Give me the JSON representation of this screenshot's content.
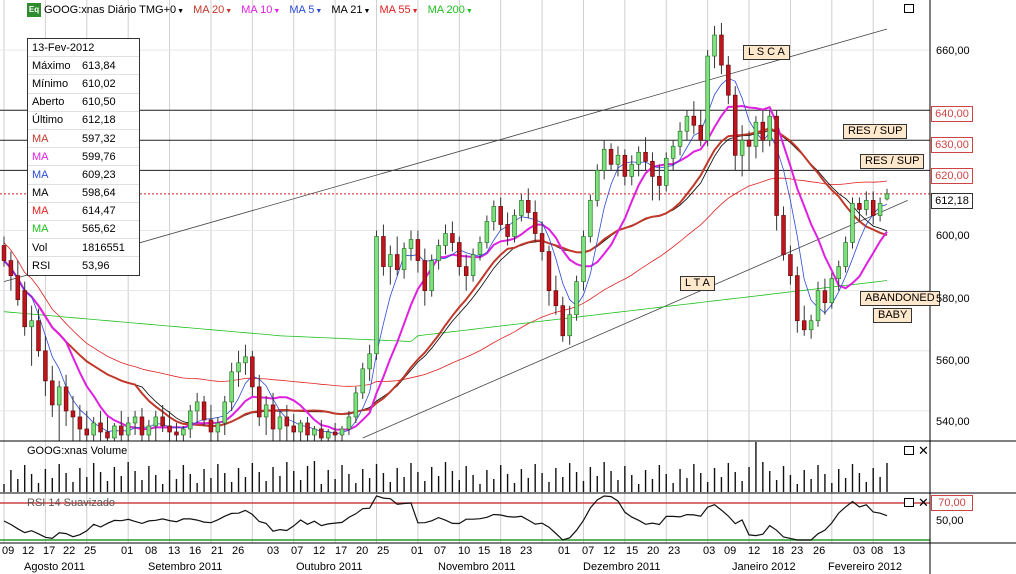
{
  "header": {
    "symbol": "GOOG:xnas Diário TMG+0",
    "eq_badge": "Eq",
    "indicators": [
      {
        "label": "MA 20",
        "color": "#c0392b"
      },
      {
        "label": "MA 10",
        "color": "#e020e0"
      },
      {
        "label": "MA 5",
        "color": "#2a4bd7"
      },
      {
        "label": "MA 21",
        "color": "#000000"
      },
      {
        "label": "MA 55",
        "color": "#e02020"
      },
      {
        "label": "MA 200",
        "color": "#20c020"
      }
    ]
  },
  "info_panel": {
    "date": "13-Fev-2012",
    "rows": [
      {
        "label": "Máximo",
        "value": "613,84",
        "color": "#000000"
      },
      {
        "label": "Mínimo",
        "value": "610,02",
        "color": "#000000"
      },
      {
        "label": "Aberto",
        "value": "610,50",
        "color": "#000000"
      },
      {
        "label": "Último",
        "value": "612,18",
        "color": "#000000"
      },
      {
        "label": "MA",
        "value": "597,32",
        "color": "#c0392b"
      },
      {
        "label": "MA",
        "value": "599,76",
        "color": "#e020e0"
      },
      {
        "label": "MA",
        "value": "609,23",
        "color": "#2a4bd7"
      },
      {
        "label": "MA",
        "value": "598,64",
        "color": "#000000"
      },
      {
        "label": "MA",
        "value": "614,47",
        "color": "#e02020"
      },
      {
        "label": "MA",
        "value": "565,62",
        "color": "#20c020"
      },
      {
        "label": "Vol",
        "value": "1816551",
        "color": "#000000"
      },
      {
        "label": "RSI",
        "value": "53,96",
        "color": "#000000"
      }
    ]
  },
  "annotations": {
    "lsca": "L S C A",
    "lta": "L T A",
    "res_sup_1": "RES / SUP",
    "res_sup_2": "RES / SUP",
    "abandoned": "ABANDONED",
    "baby": "BABY"
  },
  "price_axis": {
    "labels": [
      "660,00",
      "600,00",
      "580,00",
      "560,00",
      "540,00"
    ],
    "resistance_boxes": [
      "640,00",
      "630,00",
      "620,00"
    ],
    "current_price": "612,18"
  },
  "volume_panel": {
    "label": "GOOG:xnas Volume"
  },
  "rsi_panel": {
    "label": "RSI 14 Suavizado",
    "upper_level": "70,00",
    "mid_label": "50,00"
  },
  "x_axis": {
    "days": [
      "09",
      "12",
      "17",
      "22",
      "25",
      "01",
      "08",
      "13",
      "16",
      "21",
      "26",
      "03",
      "07",
      "12",
      "17",
      "20",
      "25",
      "01",
      "07",
      "10",
      "15",
      "18",
      "23",
      "01",
      "07",
      "12",
      "15",
      "20",
      "23",
      "03",
      "09",
      "12",
      "18",
      "23",
      "26",
      "03",
      "08",
      "13"
    ],
    "months": [
      "Agosto 2011",
      "Setembro 2011",
      "Outubro 2011",
      "Novembro 2011",
      "Dezembro 2011",
      "Janeiro 2012",
      "Fevereiro 2012"
    ]
  },
  "chart_data": {
    "type": "candlestick",
    "symbol": "GOOG:xnas",
    "period": "Diário",
    "ylim": [
      530,
      670
    ],
    "candles": [
      [
        595,
        598,
        588,
        590
      ],
      [
        590,
        593,
        580,
        585
      ],
      [
        585,
        590,
        575,
        577
      ],
      [
        580,
        583,
        565,
        568
      ],
      [
        568,
        575,
        555,
        570
      ],
      [
        570,
        574,
        558,
        560
      ],
      [
        560,
        565,
        545,
        550
      ],
      [
        550,
        555,
        538,
        542
      ],
      [
        542,
        550,
        530,
        548
      ],
      [
        548,
        552,
        535,
        540
      ],
      [
        540,
        545,
        530,
        538
      ],
      [
        538,
        542,
        530,
        534
      ],
      [
        534,
        540,
        530,
        532
      ],
      [
        532,
        538,
        530,
        536
      ],
      [
        536,
        540,
        530,
        533
      ],
      [
        533,
        538,
        530,
        531
      ],
      [
        531,
        536,
        530,
        535
      ],
      [
        535,
        540,
        530,
        532
      ],
      [
        532,
        538,
        530,
        536
      ],
      [
        536,
        540,
        532,
        538
      ],
      [
        538,
        541,
        530,
        532
      ],
      [
        532,
        537,
        530,
        535
      ],
      [
        535,
        540,
        530,
        538
      ],
      [
        538,
        542,
        533,
        535
      ],
      [
        535,
        540,
        530,
        533
      ],
      [
        533,
        536,
        530,
        532
      ],
      [
        532,
        535,
        530,
        534
      ],
      [
        534,
        542,
        531,
        540
      ],
      [
        540,
        546,
        536,
        543
      ],
      [
        543,
        545,
        535,
        537
      ],
      [
        537,
        542,
        530,
        533
      ],
      [
        533,
        538,
        530,
        536
      ],
      [
        536,
        545,
        532,
        543
      ],
      [
        543,
        556,
        540,
        553
      ],
      [
        553,
        560,
        548,
        556
      ],
      [
        556,
        562,
        552,
        558
      ],
      [
        558,
        560,
        545,
        548
      ],
      [
        548,
        552,
        535,
        538
      ],
      [
        538,
        545,
        532,
        542
      ],
      [
        542,
        546,
        530,
        534
      ],
      [
        534,
        540,
        530,
        538
      ],
      [
        538,
        542,
        530,
        535
      ],
      [
        535,
        539,
        530,
        533
      ],
      [
        533,
        537,
        530,
        536
      ],
      [
        536,
        538,
        530,
        532
      ],
      [
        532,
        535,
        530,
        534
      ],
      [
        534,
        537,
        530,
        531
      ],
      [
        531,
        534,
        530,
        533
      ],
      [
        533,
        536,
        530,
        532
      ],
      [
        532,
        535,
        530,
        534
      ],
      [
        534,
        540,
        532,
        538
      ],
      [
        538,
        548,
        536,
        546
      ],
      [
        546,
        556,
        544,
        554
      ],
      [
        554,
        562,
        550,
        559
      ],
      [
        559,
        600,
        557,
        598
      ],
      [
        598,
        602,
        585,
        588
      ],
      [
        588,
        595,
        582,
        592
      ],
      [
        592,
        598,
        585,
        587
      ],
      [
        587,
        596,
        584,
        594
      ],
      [
        594,
        600,
        590,
        597
      ],
      [
        597,
        600,
        586,
        590
      ],
      [
        590,
        594,
        575,
        580
      ],
      [
        580,
        592,
        578,
        590
      ],
      [
        590,
        597,
        587,
        595
      ],
      [
        595,
        602,
        592,
        599
      ],
      [
        599,
        603,
        593,
        596
      ],
      [
        596,
        598,
        585,
        588
      ],
      [
        588,
        592,
        580,
        585
      ],
      [
        585,
        594,
        583,
        592
      ],
      [
        592,
        598,
        590,
        596
      ],
      [
        596,
        605,
        594,
        603
      ],
      [
        603,
        610,
        600,
        608
      ],
      [
        608,
        611,
        600,
        602
      ],
      [
        602,
        606,
        595,
        598
      ],
      [
        598,
        607,
        596,
        605
      ],
      [
        605,
        612,
        603,
        610
      ],
      [
        610,
        614,
        604,
        606
      ],
      [
        606,
        610,
        596,
        599
      ],
      [
        599,
        603,
        590,
        593
      ],
      [
        593,
        595,
        575,
        580
      ],
      [
        580,
        585,
        572,
        575
      ],
      [
        575,
        578,
        563,
        565
      ],
      [
        565,
        575,
        562,
        572
      ],
      [
        572,
        585,
        570,
        583
      ],
      [
        583,
        600,
        580,
        598
      ],
      [
        598,
        612,
        596,
        610
      ],
      [
        610,
        622,
        608,
        620
      ],
      [
        620,
        630,
        617,
        627
      ],
      [
        627,
        629,
        620,
        622
      ],
      [
        622,
        628,
        618,
        625
      ],
      [
        625,
        627,
        615,
        618
      ],
      [
        618,
        625,
        615,
        622
      ],
      [
        622,
        628,
        618,
        626
      ],
      [
        626,
        631,
        620,
        623
      ],
      [
        623,
        626,
        610,
        618
      ],
      [
        618,
        622,
        610,
        615
      ],
      [
        615,
        626,
        613,
        624
      ],
      [
        624,
        630,
        620,
        628
      ],
      [
        628,
        636,
        625,
        633
      ],
      [
        633,
        640,
        630,
        638
      ],
      [
        638,
        643,
        632,
        635
      ],
      [
        635,
        640,
        628,
        630
      ],
      [
        630,
        660,
        628,
        658
      ],
      [
        658,
        668,
        654,
        665
      ],
      [
        665,
        669,
        652,
        655
      ],
      [
        655,
        658,
        642,
        645
      ],
      [
        645,
        648,
        620,
        625
      ],
      [
        625,
        635,
        618,
        630
      ],
      [
        630,
        633,
        620,
        628
      ],
      [
        628,
        638,
        624,
        636
      ],
      [
        636,
        640,
        626,
        630
      ],
      [
        630,
        640,
        628,
        638
      ],
      [
        638,
        640,
        600,
        605
      ],
      [
        605,
        608,
        590,
        592
      ],
      [
        592,
        595,
        582,
        585
      ],
      [
        585,
        588,
        566,
        570
      ],
      [
        570,
        575,
        565,
        567
      ],
      [
        567,
        572,
        564,
        570
      ],
      [
        570,
        583,
        568,
        580
      ],
      [
        580,
        584,
        572,
        576
      ],
      [
        576,
        586,
        574,
        584
      ],
      [
        584,
        590,
        580,
        588
      ],
      [
        588,
        598,
        586,
        596
      ],
      [
        596,
        611,
        594,
        609
      ],
      [
        609,
        611,
        603,
        607
      ],
      [
        607,
        613,
        605,
        610
      ],
      [
        610,
        613,
        602,
        605
      ],
      [
        605,
        611,
        603,
        609
      ],
      [
        610.5,
        613.84,
        610.02,
        612.18
      ]
    ],
    "moving_averages": [
      {
        "name": "MA 20",
        "period": 20,
        "color": "#c0392b"
      },
      {
        "name": "MA 10",
        "period": 10,
        "color": "#e020e0"
      },
      {
        "name": "MA 5",
        "period": 5,
        "color": "#2a4bd7"
      },
      {
        "name": "MA 21",
        "period": 21,
        "color": "#000000"
      },
      {
        "name": "MA 55",
        "period": 55,
        "color": "#e02020"
      },
      {
        "name": "MA 200",
        "period": 200,
        "color": "#20c020"
      }
    ],
    "horizontal_levels": [
      640,
      630,
      620
    ],
    "current_price": 612.18,
    "rsi": {
      "period": 14,
      "upper": 70,
      "lower": 30,
      "last": 53.96
    },
    "last_volume": 1816551
  }
}
